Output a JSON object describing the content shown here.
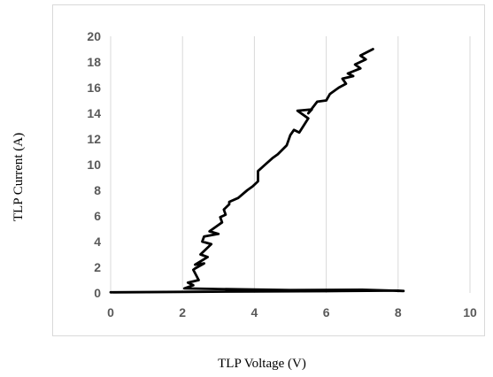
{
  "colors": {
    "line": "#000000",
    "grid": "#d9d9d9",
    "tick_text": "#595959",
    "frame": "#d9d9d9"
  },
  "chart_data": {
    "type": "line",
    "title": "",
    "xlabel": "TLP Voltage (V)",
    "ylabel": "TLP Current (A)",
    "xlim": [
      0,
      10
    ],
    "ylim": [
      0,
      20
    ],
    "x_ticks": [
      0,
      2,
      4,
      6,
      8,
      10
    ],
    "y_ticks": [
      0,
      2,
      4,
      6,
      8,
      10,
      12,
      14,
      16,
      18,
      20
    ],
    "grid": {
      "vertical": true,
      "horizontal": false
    },
    "legend": "none",
    "series": [
      {
        "x": [
          0.0,
          2.0,
          4.0,
          6.0,
          8.0,
          8.15,
          7.0,
          5.0,
          3.0,
          2.05,
          2.3,
          2.15,
          2.45,
          2.3,
          2.35,
          2.6,
          2.35,
          2.7,
          2.5,
          2.8,
          2.55,
          2.6,
          3.0,
          2.75,
          3.1,
          3.05,
          3.2,
          3.15,
          3.3,
          3.3,
          3.55,
          3.8,
          3.95,
          4.1,
          4.1,
          4.3,
          4.5,
          4.65,
          4.9,
          5.0,
          5.1,
          5.25,
          5.5,
          5.2,
          5.6,
          5.5,
          5.75,
          6.0,
          6.1,
          6.35,
          6.55,
          6.45,
          6.75,
          6.6,
          6.95,
          6.8,
          7.1,
          6.95,
          7.3
        ],
        "y": [
          0.05,
          0.08,
          0.12,
          0.14,
          0.18,
          0.15,
          0.25,
          0.22,
          0.3,
          0.35,
          0.6,
          0.8,
          1.0,
          1.8,
          1.9,
          2.3,
          2.2,
          2.8,
          3.0,
          3.8,
          4.0,
          4.4,
          4.6,
          4.8,
          5.5,
          5.9,
          6.1,
          6.5,
          6.9,
          7.1,
          7.4,
          8.0,
          8.3,
          8.7,
          9.5,
          10.0,
          10.5,
          10.8,
          11.5,
          12.3,
          12.7,
          12.5,
          13.6,
          14.2,
          14.3,
          14.0,
          14.9,
          15.0,
          15.5,
          16.0,
          16.3,
          16.7,
          16.9,
          17.1,
          17.5,
          17.8,
          18.2,
          18.5,
          19.0
        ]
      }
    ]
  }
}
